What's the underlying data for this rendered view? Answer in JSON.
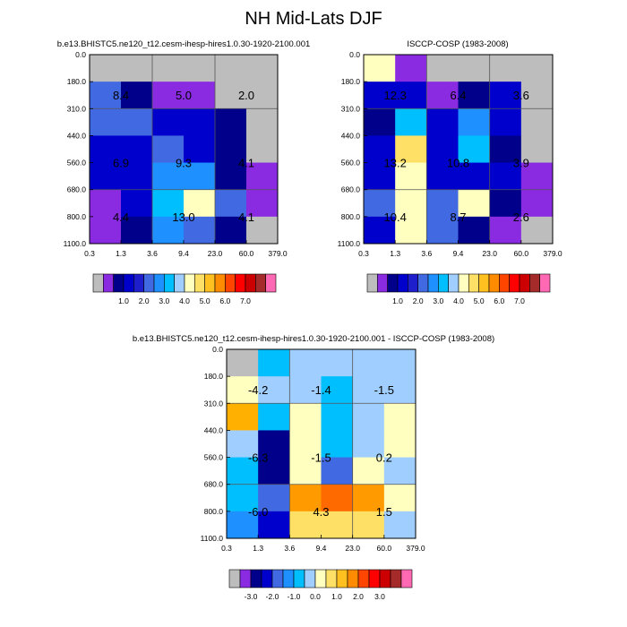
{
  "title": "NH Mid-Lats DJF",
  "chart_data": [
    {
      "type": "heatmap",
      "title": "b.e13.BHISTC5.ne120_t12.cesm-ihesp-hires1.0.30-1920-2100.001",
      "x_ticks": [
        "0.3",
        "1.3",
        "3.6",
        "9.4",
        "23.0",
        "60.0",
        "379.0"
      ],
      "y_ticks": [
        "0.0",
        "180.0",
        "310.0",
        "440.0",
        "560.0",
        "680.0",
        "800.0",
        "1100.0"
      ],
      "grid": true,
      "cells": [
        [
          "missing",
          "missing",
          "missing",
          "missing",
          "missing",
          "missing"
        ],
        [
          "c5",
          "c2",
          "c1",
          "c1",
          "missing",
          "missing"
        ],
        [
          "c5",
          "c5",
          "c3",
          "c3",
          "c2",
          "missing"
        ],
        [
          "c3",
          "c3",
          "c5",
          "c3",
          "c2",
          "missing"
        ],
        [
          "c3",
          "c3",
          "c6",
          "c6",
          "c2",
          "c1"
        ],
        [
          "c1",
          "c3",
          "c8",
          "c9",
          "c5",
          "c1"
        ],
        [
          "c1",
          "c2",
          "c6",
          "c5",
          "c2",
          "missing"
        ]
      ],
      "annotations": [
        {
          "col_center": 1.0,
          "row_center": 1.5,
          "text": "8.4"
        },
        {
          "col_center": 3.0,
          "row_center": 1.5,
          "text": "5.0"
        },
        {
          "col_center": 5.0,
          "row_center": 1.5,
          "text": "2.0"
        },
        {
          "col_center": 1.0,
          "row_center": 4.0,
          "text": "6.9"
        },
        {
          "col_center": 3.0,
          "row_center": 4.0,
          "text": "9.3"
        },
        {
          "col_center": 5.0,
          "row_center": 4.0,
          "text": "4.1"
        },
        {
          "col_center": 1.0,
          "row_center": 6.0,
          "text": "4.4"
        },
        {
          "col_center": 3.0,
          "row_center": 6.0,
          "text": "13.0"
        },
        {
          "col_center": 5.0,
          "row_center": 6.0,
          "text": "4.1"
        }
      ],
      "colorbar": {
        "colors": [
          "#bdbdbd",
          "#8a2be2",
          "#00008b",
          "#0000cd",
          "#1e1ecc",
          "#4169e1",
          "#1e90ff",
          "#00bfff",
          "#a0cfff",
          "#ffffc0",
          "#ffe066",
          "#ffc020",
          "#ff8c00",
          "#ff4500",
          "#ff0000",
          "#cc0000",
          "#a52a2a",
          "#ff69b4"
        ],
        "labels": [
          "1.0",
          "2.0",
          "3.0",
          "4.0",
          "5.0",
          "6.0",
          "7.0"
        ],
        "label_after_box": [
          3,
          5,
          7,
          9,
          11,
          13,
          15
        ]
      }
    },
    {
      "type": "heatmap",
      "title": "ISCCP-COSP (1983-2008)",
      "x_ticks": [
        "0.3",
        "1.3",
        "3.6",
        "9.4",
        "23.0",
        "60.0",
        "379.0"
      ],
      "y_ticks": [
        "0.0",
        "180.0",
        "310.0",
        "440.0",
        "560.0",
        "680.0",
        "800.0",
        "1100.0"
      ],
      "grid": true,
      "cells": [
        [
          "c9",
          "c1",
          "missing",
          "missing",
          "missing",
          "missing"
        ],
        [
          "c3",
          "c3",
          "c1",
          "c2",
          "c3",
          "missing"
        ],
        [
          "c2",
          "c8",
          "c3",
          "c6",
          "c3",
          "missing"
        ],
        [
          "c3",
          "c11",
          "c3",
          "c8",
          "c2",
          "missing"
        ],
        [
          "c3",
          "c10",
          "c3",
          "c3",
          "c3",
          "c1"
        ],
        [
          "c5",
          "c10",
          "c5",
          "c9",
          "c2",
          "c1"
        ],
        [
          "c3",
          "c9",
          "c5",
          "c2",
          "c1",
          "missing"
        ]
      ],
      "annotations": [
        {
          "col_center": 1.0,
          "row_center": 1.5,
          "text": "12.3"
        },
        {
          "col_center": 3.0,
          "row_center": 1.5,
          "text": "6.4"
        },
        {
          "col_center": 5.0,
          "row_center": 1.5,
          "text": "3.6"
        },
        {
          "col_center": 1.0,
          "row_center": 4.0,
          "text": "13.2"
        },
        {
          "col_center": 3.0,
          "row_center": 4.0,
          "text": "10.8"
        },
        {
          "col_center": 5.0,
          "row_center": 4.0,
          "text": "3.9"
        },
        {
          "col_center": 1.0,
          "row_center": 6.0,
          "text": "10.4"
        },
        {
          "col_center": 3.0,
          "row_center": 6.0,
          "text": "8.7"
        },
        {
          "col_center": 5.0,
          "row_center": 6.0,
          "text": "2.6"
        }
      ],
      "colorbar": {
        "colors": [
          "#bdbdbd",
          "#8a2be2",
          "#00008b",
          "#0000cd",
          "#1e1ecc",
          "#4169e1",
          "#1e90ff",
          "#00bfff",
          "#a0cfff",
          "#ffffc0",
          "#ffe066",
          "#ffc020",
          "#ff8c00",
          "#ff4500",
          "#ff0000",
          "#cc0000",
          "#a52a2a",
          "#ff69b4"
        ],
        "labels": [
          "1.0",
          "2.0",
          "3.0",
          "4.0",
          "5.0",
          "6.0",
          "7.0"
        ],
        "label_after_box": [
          3,
          5,
          7,
          9,
          11,
          13,
          15
        ]
      }
    },
    {
      "type": "heatmap",
      "title": "b.e13.BHISTC5.ne120_t12.cesm-ihesp-hires1.0.30-1920-2100.001 - ISCCP-COSP (1983-2008)",
      "x_ticks": [
        "0.3",
        "1.3",
        "3.6",
        "9.4",
        "23.0",
        "60.0",
        "379.0"
      ],
      "y_ticks": [
        "0.0",
        "180.0",
        "310.0",
        "440.0",
        "560.0",
        "680.0",
        "800.0",
        "1100.0"
      ],
      "grid": true,
      "cells": [
        [
          "missing",
          "d8",
          "d9",
          "d9",
          "d9",
          "d9"
        ],
        [
          "d10",
          "d9",
          "d9",
          "d8",
          "d9",
          "d9"
        ],
        [
          "d12",
          "d8",
          "d10",
          "d8",
          "d9",
          "d10"
        ],
        [
          "d9",
          "d2",
          "d10",
          "d8",
          "d9",
          "d10"
        ],
        [
          "d8",
          "d2",
          "d10",
          "d5",
          "d10",
          "d9"
        ],
        [
          "d8",
          "d5",
          "d13",
          "d14",
          "d13",
          "d10"
        ],
        [
          "d7",
          "d3",
          "d11",
          "d11",
          "d11",
          "d9"
        ]
      ],
      "annotations": [
        {
          "col_center": 1.0,
          "row_center": 1.5,
          "text": "-4.2"
        },
        {
          "col_center": 3.0,
          "row_center": 1.5,
          "text": "-1.4"
        },
        {
          "col_center": 5.0,
          "row_center": 1.5,
          "text": "-1.5"
        },
        {
          "col_center": 1.0,
          "row_center": 4.0,
          "text": "-6.3"
        },
        {
          "col_center": 3.0,
          "row_center": 4.0,
          "text": "-1.5"
        },
        {
          "col_center": 5.0,
          "row_center": 4.0,
          "text": "0.2"
        },
        {
          "col_center": 1.0,
          "row_center": 6.0,
          "text": "-6.0"
        },
        {
          "col_center": 3.0,
          "row_center": 6.0,
          "text": "4.3"
        },
        {
          "col_center": 5.0,
          "row_center": 6.0,
          "text": "1.5"
        }
      ],
      "colorbar": {
        "colors": [
          "#bdbdbd",
          "#8a2be2",
          "#00008b",
          "#0000cd",
          "#4169e1",
          "#1e90ff",
          "#00bfff",
          "#a0cfff",
          "#ffffc0",
          "#ffe066",
          "#ffc020",
          "#ff8c00",
          "#ff4500",
          "#ff0000",
          "#cc0000",
          "#a52a2a",
          "#ff69b4"
        ],
        "labels": [
          "-3.0",
          "-2.0",
          "-1.0",
          "0.0",
          "1.0",
          "2.0",
          "3.0"
        ],
        "label_after_box": [
          2,
          4,
          6,
          8,
          10,
          12,
          14
        ]
      }
    }
  ],
  "palettes": {
    "abs": {
      "missing": "#bdbdbd",
      "c1": "#8a2be2",
      "c2": "#00008b",
      "c3": "#0000cd",
      "c5": "#4169e1",
      "c6": "#1e90ff",
      "c8": "#00bfff",
      "c9": "#ffffc0",
      "c10": "#ffffc0",
      "c11": "#ffe066"
    },
    "diff": {
      "missing": "#bdbdbd",
      "d2": "#00008b",
      "d3": "#0000cd",
      "d5": "#4169e1",
      "d7": "#1e90ff",
      "d8": "#00bfff",
      "d9": "#a0cfff",
      "d10": "#ffffc0",
      "d11": "#ffe066",
      "d12": "#ffb000",
      "d13": "#ff9a00",
      "d14": "#ff6a00"
    }
  }
}
